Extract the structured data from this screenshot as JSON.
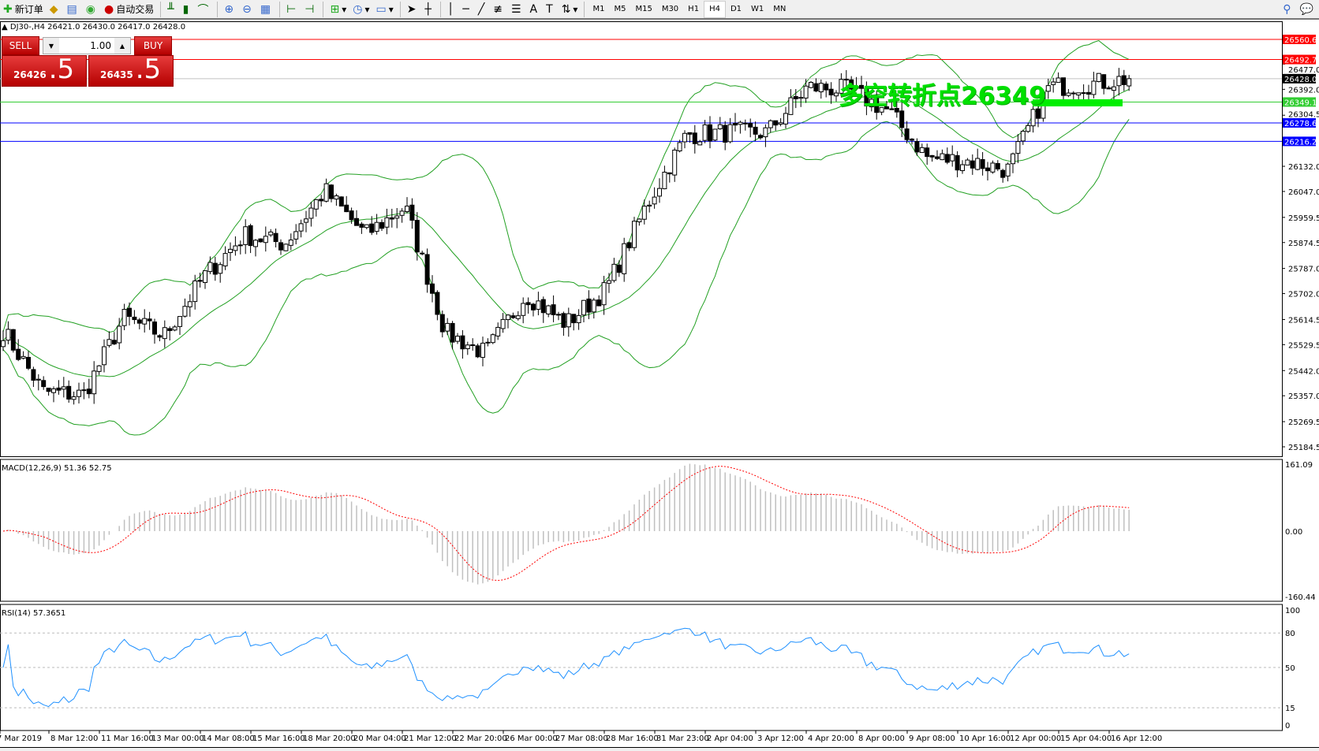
{
  "toolbar": {
    "new_order": "新订单",
    "auto_trading": "自动交易",
    "timeframes": [
      "M1",
      "M5",
      "M15",
      "M30",
      "H1",
      "H4",
      "D1",
      "W1",
      "MN"
    ],
    "active_timeframe": "H4"
  },
  "chart": {
    "symbol_info": "DJ30-,H4  26421.0 26430.0 26417.0 26428.0",
    "oneclick": {
      "sell": "SELL",
      "buy": "BUY",
      "lot": "1.00",
      "sell_price_main": "26426",
      "sell_price_frac": ".5",
      "buy_price_main": "26435",
      "buy_price_frac": ".5"
    },
    "annotation": "多空转折点26349",
    "price_ticks": [
      "26477.0",
      "26392.0",
      "26304.5",
      "26132.0",
      "26047.0",
      "25959.5",
      "25874.5",
      "25787.0",
      "25702.0",
      "25614.5",
      "25529.5",
      "25442.0",
      "25357.0",
      "25269.5",
      "25184.5"
    ],
    "lines": [
      {
        "price": "26560.6",
        "color": "#ff0000"
      },
      {
        "price": "26492.7",
        "color": "#ff0000"
      },
      {
        "price": "26428.0",
        "color": "#000000",
        "line": "#c0c0c0"
      },
      {
        "price": "26349.1",
        "color": "#32cd32"
      },
      {
        "price": "26278.6",
        "color": "#0000ff"
      },
      {
        "price": "26216.2",
        "color": "#0000ff"
      }
    ],
    "price_path": [
      25578,
      25370,
      25360,
      25620,
      25560,
      25760,
      25900,
      25870,
      26050,
      25900,
      25996,
      25570,
      25500,
      25700,
      25600,
      25717,
      26000,
      26240,
      26246,
      26246,
      26400,
      26390,
      26320,
      26160,
      26150,
      26120,
      26400,
      26410,
      26428
    ],
    "macd": {
      "label": "MACD(12,26,9) 51.36 52.75",
      "ticks": [
        "161.09",
        "0.00",
        "-160.44"
      ]
    },
    "rsi": {
      "label": "RSI(14) 57.3651",
      "ticks": [
        "100",
        "80",
        "50",
        "15",
        "0"
      ]
    },
    "time_labels": [
      "7 Mar 2019",
      "8 Mar 12:00",
      "11 Mar 16:00",
      "13 Mar 00:00",
      "14 Mar 08:00",
      "15 Mar 16:00",
      "18 Mar 20:00",
      "20 Mar 04:00",
      "21 Mar 12:00",
      "22 Mar 20:00",
      "26 Mar 00:00",
      "27 Mar 08:00",
      "28 Mar 16:00",
      "31 Mar 23:00",
      "2 Apr 04:00",
      "3 Apr 12:00",
      "4 Apr 20:00",
      "8 Apr 00:00",
      "9 Apr 08:00",
      "10 Apr 16:00",
      "12 Apr 00:00",
      "15 Apr 04:00",
      "16 Apr 12:00"
    ],
    "colors": {
      "bands": "#22a022",
      "signal": "#ff0000",
      "rsi": "#1e90ff",
      "histogram": "#c0c0c0"
    }
  }
}
